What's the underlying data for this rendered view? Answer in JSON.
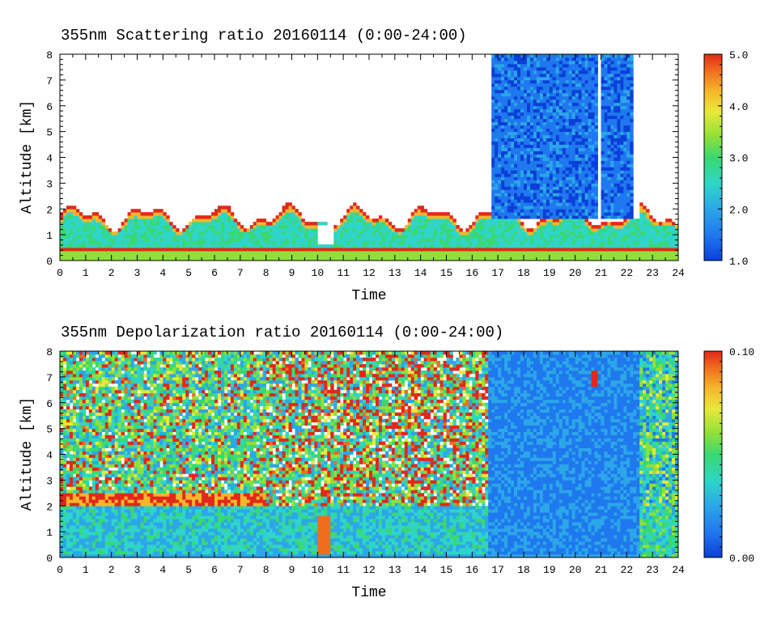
{
  "chart_data": [
    {
      "type": "heatmap",
      "title": "355nm Scattering ratio  20160114 (0:00-24:00)",
      "xlabel": "Time",
      "ylabel": "Altitude [km]",
      "xlim": [
        0,
        24
      ],
      "ylim": [
        0,
        8
      ],
      "x_ticks": [
        "0",
        "1",
        "2",
        "3",
        "4",
        "5",
        "6",
        "7",
        "8",
        "9",
        "10",
        "11",
        "12",
        "13",
        "14",
        "15",
        "16",
        "17",
        "18",
        "19",
        "20",
        "21",
        "22",
        "23",
        "24"
      ],
      "y_ticks": [
        "0",
        "1",
        "2",
        "3",
        "4",
        "5",
        "6",
        "7",
        "8"
      ],
      "colorbar": {
        "range": [
          1.0,
          5.0
        ],
        "tick_labels": [
          "1.0",
          "2.0",
          "3.0",
          "4.0",
          "5.0"
        ]
      },
      "features": [
        {
          "label": "low-level aerosol layer",
          "time": [
            0,
            24
          ],
          "altitude_km": [
            0.4,
            2.2
          ],
          "value": 2.2
        },
        {
          "label": "near-surface strong layer",
          "time": [
            0,
            24
          ],
          "altitude_km": [
            0.4,
            0.5
          ],
          "value": 5.0
        },
        {
          "label": "high-altitude cloud region",
          "time": [
            16.8,
            22.5
          ],
          "altitude_km": [
            1.5,
            8.0
          ],
          "value": 1.6
        }
      ]
    },
    {
      "type": "heatmap",
      "title": "355nm Depolarization ratio  20160114 (0:00-24:00)",
      "xlabel": "Time",
      "ylabel": "Altitude [km]",
      "xlim": [
        0,
        24
      ],
      "ylim": [
        0,
        8
      ],
      "x_ticks": [
        "0",
        "1",
        "2",
        "3",
        "4",
        "5",
        "6",
        "7",
        "8",
        "9",
        "10",
        "11",
        "12",
        "13",
        "14",
        "15",
        "16",
        "17",
        "18",
        "19",
        "20",
        "21",
        "22",
        "23",
        "24"
      ],
      "y_ticks": [
        "0",
        "1",
        "2",
        "3",
        "4",
        "5",
        "6",
        "7",
        "8"
      ],
      "colorbar": {
        "range": [
          0.0,
          0.1
        ],
        "tick_labels": [
          "0.00",
          "0.10"
        ]
      },
      "features": [
        {
          "label": "noisy upper region",
          "time": [
            0,
            16.6
          ],
          "altitude_km": [
            2.2,
            8.0
          ],
          "value": 0.06
        },
        {
          "label": "boundary layer",
          "time": [
            0,
            24
          ],
          "altitude_km": [
            0.1,
            2.0
          ],
          "value": 0.02
        },
        {
          "label": "ice cloud region",
          "time": [
            16.6,
            22.5
          ],
          "altitude_km": [
            0.1,
            8.0
          ],
          "value": 0.015
        }
      ]
    }
  ],
  "colors": {
    "colormap": [
      "#0b3fd8",
      "#1f78ee",
      "#2ca6e8",
      "#2fd5c8",
      "#3ad870",
      "#8fe03a",
      "#e8e83a",
      "#f6b62c",
      "#ef6d1e",
      "#e2281a"
    ]
  }
}
